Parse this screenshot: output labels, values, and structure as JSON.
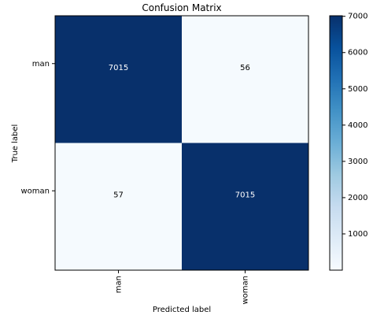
{
  "chart_data": {
    "type": "heatmap",
    "title": "Confusion Matrix",
    "xlabel": "Predicted label",
    "ylabel": "True label",
    "x_categories": [
      "man",
      "woman"
    ],
    "y_categories": [
      "man",
      "woman"
    ],
    "values": [
      [
        7015,
        56
      ],
      [
        57,
        7015
      ]
    ],
    "colormap": "Blues",
    "color_low": "#f7fbff",
    "color_high": "#08306b",
    "text_color_dark_cell": "#ffffff",
    "text_color_light_cell": "#000000",
    "colorbar": {
      "range": [
        0,
        7015
      ],
      "ticks": [
        1000,
        2000,
        3000,
        4000,
        5000,
        6000,
        7000
      ],
      "location": "right"
    },
    "grid": false
  }
}
